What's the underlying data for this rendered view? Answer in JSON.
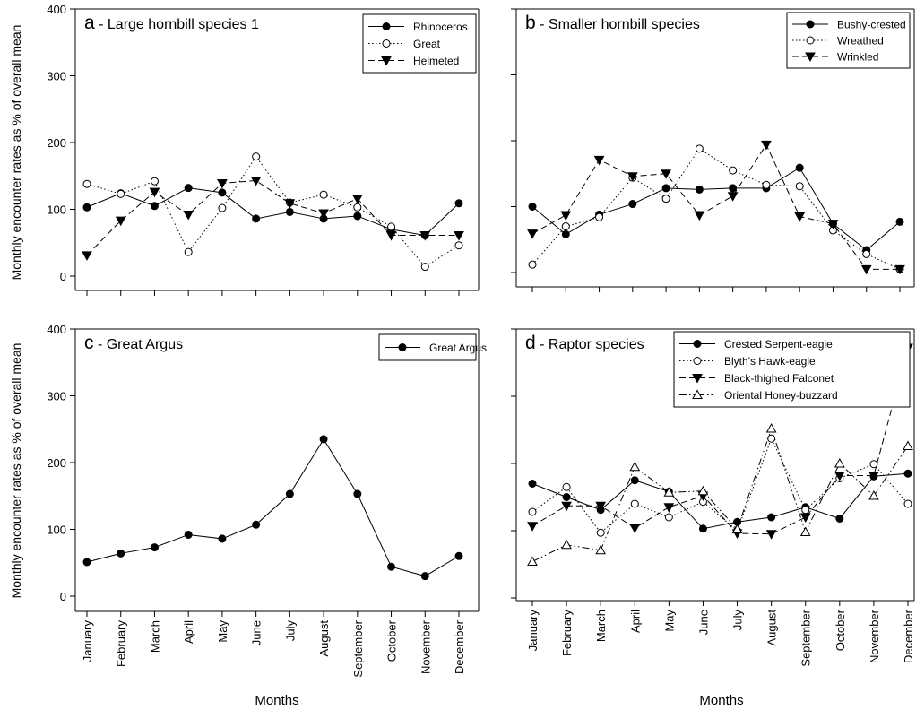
{
  "figure": {
    "ylabel": "Monthly encounter rates as % of overall mean",
    "xlabel": "Months"
  },
  "chart_data": [
    {
      "type": "line",
      "title": "a - Large hornbill species 1",
      "title_letter": "a",
      "title_rest": " - Large hornbill species 1",
      "xlabel": "",
      "ylabel": "Monthly encounter rates as % of overall mean",
      "categories": [
        "January",
        "February",
        "March",
        "April",
        "May",
        "June",
        "July",
        "August",
        "September",
        "October",
        "November",
        "December"
      ],
      "ylim": [
        0,
        400
      ],
      "yticks": [
        0,
        100,
        200,
        300,
        400
      ],
      "legend_position": "top-right",
      "series": [
        {
          "name": "Rhinoceros",
          "marker": "filled-circle",
          "line": "solid",
          "values": [
            103,
            124,
            105,
            132,
            125,
            86,
            96,
            86,
            90,
            70,
            61,
            109
          ]
        },
        {
          "name": "Great",
          "marker": "open-circle",
          "line": "dotted",
          "values": [
            138,
            123,
            142,
            36,
            102,
            179,
            110,
            122,
            103,
            74,
            14,
            46
          ]
        },
        {
          "name": "Helmeted",
          "marker": "filled-triangle-down",
          "line": "dashed",
          "values": [
            31,
            83,
            126,
            92,
            139,
            143,
            109,
            94,
            116,
            61,
            61,
            61
          ]
        }
      ]
    },
    {
      "type": "line",
      "title": "b - Smaller hornbill species",
      "title_letter": "b",
      "title_rest": " - Smaller hornbill species",
      "xlabel": "",
      "ylabel": "",
      "categories": [
        "January",
        "February",
        "March",
        "April",
        "May",
        "June",
        "July",
        "August",
        "September",
        "October",
        "November",
        "December"
      ],
      "ylim": [
        0,
        400
      ],
      "yticks": [
        0,
        100,
        200,
        300,
        400
      ],
      "legend_position": "top-right",
      "series": [
        {
          "name": "Bushy-crested",
          "marker": "filled-circle",
          "line": "solid",
          "values": [
            100,
            58,
            88,
            104,
            128,
            126,
            128,
            128,
            159,
            74,
            34,
            77
          ]
        },
        {
          "name": "Wreathed",
          "marker": "open-circle",
          "line": "dotted",
          "values": [
            12,
            70,
            84,
            144,
            112,
            188,
            155,
            133,
            131,
            64,
            28,
            5
          ]
        },
        {
          "name": "Wrinkled",
          "marker": "filled-triangle-down",
          "line": "dashed",
          "values": [
            59,
            87,
            171,
            146,
            150,
            87,
            116,
            194,
            85,
            74,
            5,
            5
          ]
        }
      ]
    },
    {
      "type": "line",
      "title": "c - Great Argus",
      "title_letter": "c",
      "title_rest": " - Great Argus",
      "xlabel": "Months",
      "ylabel": "Monthly encounter rates as % of overall mean",
      "categories": [
        "January",
        "February",
        "March",
        "April",
        "May",
        "June",
        "July",
        "August",
        "September",
        "October",
        "November",
        "December"
      ],
      "ylim": [
        0,
        400
      ],
      "yticks": [
        0,
        100,
        200,
        300,
        400
      ],
      "legend_position": "top-right",
      "series": [
        {
          "name": "Great Argus",
          "marker": "filled-circle",
          "line": "solid",
          "values": [
            51,
            64,
            73,
            92,
            86,
            107,
            153,
            235,
            153,
            44,
            30,
            60
          ]
        }
      ]
    },
    {
      "type": "line",
      "title": "d - Raptor species",
      "title_letter": "d",
      "title_rest": " - Raptor species",
      "xlabel": "Months",
      "ylabel": "",
      "categories": [
        "January",
        "February",
        "March",
        "April",
        "May",
        "June",
        "July",
        "August",
        "September",
        "October",
        "November",
        "December"
      ],
      "ylim": [
        0,
        400
      ],
      "yticks": [
        0,
        100,
        200,
        300,
        400
      ],
      "legend_position": "top-right",
      "series": [
        {
          "name": "Crested Serpent-eagle",
          "marker": "filled-circle",
          "line": "solid",
          "values": [
            170,
            150,
            131,
            175,
            158,
            103,
            113,
            120,
            135,
            118,
            181,
            185
          ]
        },
        {
          "name": "Blyth's Hawk-eagle",
          "marker": "open-circle",
          "line": "dotted",
          "values": [
            128,
            165,
            97,
            140,
            120,
            143,
            100,
            237,
            131,
            178,
            199,
            140
          ]
        },
        {
          "name": "Black-thighed Falconet",
          "marker": "filled-triangle-down",
          "line": "dashed",
          "values": [
            107,
            137,
            137,
            104,
            135,
            152,
            96,
            95,
            120,
            182,
            182,
            372
          ]
        },
        {
          "name": "Oriental Honey-buzzard",
          "marker": "open-triangle-up",
          "line": "dash-dot-dot",
          "values": [
            54,
            79,
            71,
            195,
            157,
            159,
            102,
            252,
            98,
            200,
            152,
            226
          ]
        }
      ]
    }
  ]
}
